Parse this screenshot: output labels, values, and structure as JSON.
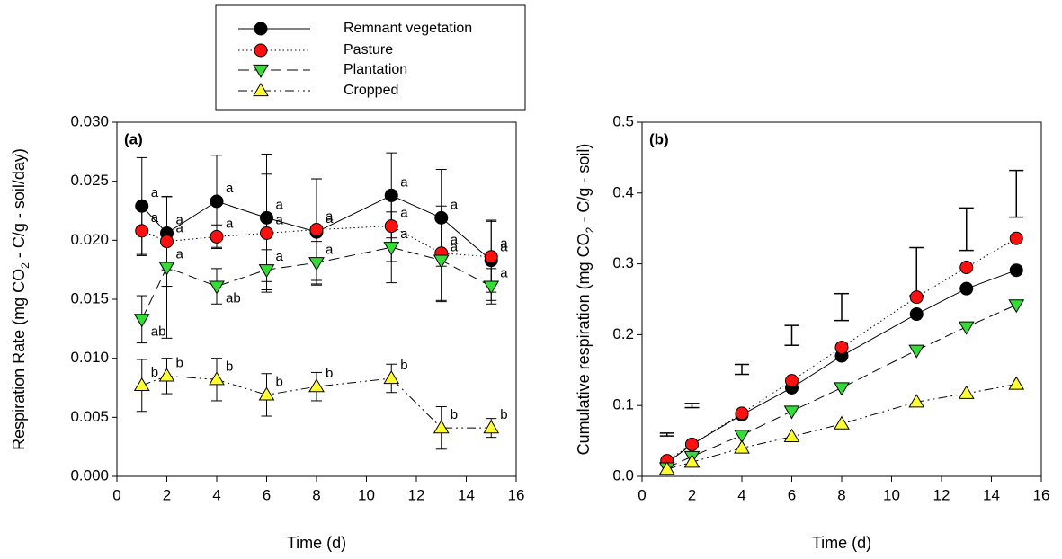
{
  "chart_data": [
    {
      "type": "line",
      "panel_label": "(a)",
      "y_label": [
        "Respiration Rate (mg CO",
        "2",
        " - C/g - soil/day)"
      ],
      "x_label": "Time (d)",
      "x": [
        1,
        2,
        4,
        6,
        8,
        11,
        13,
        15
      ],
      "xlim": [
        0,
        16
      ],
      "xticks": [
        0,
        2,
        4,
        6,
        8,
        10,
        12,
        14,
        16
      ],
      "ylim": [
        0,
        0.03
      ],
      "yticks": [
        {
          "value": 0,
          "label": "0.000"
        },
        {
          "value": 0.005,
          "label": "0.005"
        },
        {
          "value": 0.01,
          "label": "0.010"
        },
        {
          "value": 0.015,
          "label": "0.015"
        },
        {
          "value": 0.02,
          "label": "0.020"
        },
        {
          "value": 0.025,
          "label": "0.025"
        },
        {
          "value": 0.03,
          "label": "0.030"
        }
      ],
      "legend": "top",
      "series": [
        {
          "name": "Remnant vegetation",
          "color": "#000000",
          "marker": "circle",
          "dash": "solid",
          "values": [
            0.0229,
            0.0206,
            0.0233,
            0.0219,
            0.0207,
            0.0238,
            0.0219,
            0.0183
          ],
          "errors": [
            0.0041,
            0.0031,
            0.0039,
            0.0054,
            0.0045,
            0.0036,
            0.0041,
            0.0034
          ],
          "letters": [
            "a",
            "a",
            "a",
            "a",
            "a",
            "a",
            "a",
            "a"
          ]
        },
        {
          "name": "Pasture",
          "color": "#ff1010",
          "marker": "circle",
          "dash": "dotted",
          "values": [
            0.0208,
            0.0199,
            0.0203,
            0.0206,
            0.0209,
            0.0212,
            0.0189,
            0.0186
          ],
          "errors": [
            0.0021,
            0.0038,
            0.001,
            0.005,
            0.0043,
            0.003,
            0.004,
            0.003
          ],
          "letters": [
            "a",
            "a",
            "a",
            "a",
            "a",
            "a",
            "a",
            "a"
          ]
        },
        {
          "name": "Plantation",
          "color": "#33dd33",
          "marker": "triangle-down",
          "dash": "dashed",
          "values": [
            0.0133,
            0.0177,
            0.0161,
            0.0175,
            0.0181,
            0.0194,
            0.0183,
            0.0161
          ],
          "errors": [
            0.002,
            0.006,
            0.0015,
            0.0017,
            0.0018,
            0.003,
            0.0035,
            0.0015
          ],
          "letters": [
            "ab",
            "a",
            "ab",
            "a",
            "a",
            "a",
            "a",
            "a"
          ]
        },
        {
          "name": "Cropped",
          "color": "#ffff33",
          "marker": "triangle-up",
          "dash": "dash-dot-dot",
          "values": [
            0.0077,
            0.0085,
            0.0082,
            0.0069,
            0.0076,
            0.0083,
            0.0041,
            0.0041
          ],
          "errors": [
            0.0022,
            0.0015,
            0.0018,
            0.0018,
            0.0012,
            0.0012,
            0.0018,
            0.0008
          ],
          "letters": [
            "b",
            "b",
            "b",
            "b",
            "b",
            "b",
            "b",
            "b"
          ]
        }
      ]
    },
    {
      "type": "line",
      "panel_label": "(b)",
      "y_label": [
        "Cumulative respiration (mg CO",
        "2",
        " - C/g - soil)"
      ],
      "x_label": "Time (d)",
      "x": [
        1,
        2,
        4,
        6,
        8,
        11,
        13,
        15
      ],
      "xlim": [
        0,
        16
      ],
      "xticks": [
        0,
        2,
        4,
        6,
        8,
        10,
        12,
        14,
        16
      ],
      "ylim": [
        0,
        0.5
      ],
      "yticks": [
        {
          "value": 0,
          "label": "0.0"
        },
        0.1,
        0.2,
        0.3,
        0.4,
        0.5
      ],
      "series": [
        {
          "color": "#000000",
          "marker": "circle",
          "dash": "solid",
          "values": [
            0.019,
            0.045,
            0.087,
            0.125,
            0.17,
            0.229,
            0.265,
            0.291
          ]
        },
        {
          "color": "#ff1010",
          "marker": "circle",
          "dash": "dotted",
          "values": [
            0.022,
            0.045,
            0.089,
            0.135,
            0.182,
            0.253,
            0.295,
            0.336
          ]
        },
        {
          "color": "#33dd33",
          "marker": "triangle-down",
          "dash": "dashed",
          "values": [
            0.012,
            0.028,
            0.058,
            0.092,
            0.125,
            0.178,
            0.211,
            0.242
          ]
        },
        {
          "color": "#ffff33",
          "marker": "triangle-up",
          "dash": "dash-dot-dot",
          "values": [
            0.01,
            0.02,
            0.04,
            0.056,
            0.074,
            0.105,
            0.117,
            0.13
          ]
        }
      ],
      "error_bars": {
        "x": [
          1,
          2,
          4,
          6,
          8,
          11,
          13,
          15
        ],
        "values": [
          0.059,
          0.1,
          0.151,
          0.199,
          0.239,
          0.289,
          0.349,
          0.399
        ],
        "errors": [
          0.002,
          0.003,
          0.007,
          0.014,
          0.019,
          0.034,
          0.03,
          0.033
        ]
      }
    }
  ]
}
